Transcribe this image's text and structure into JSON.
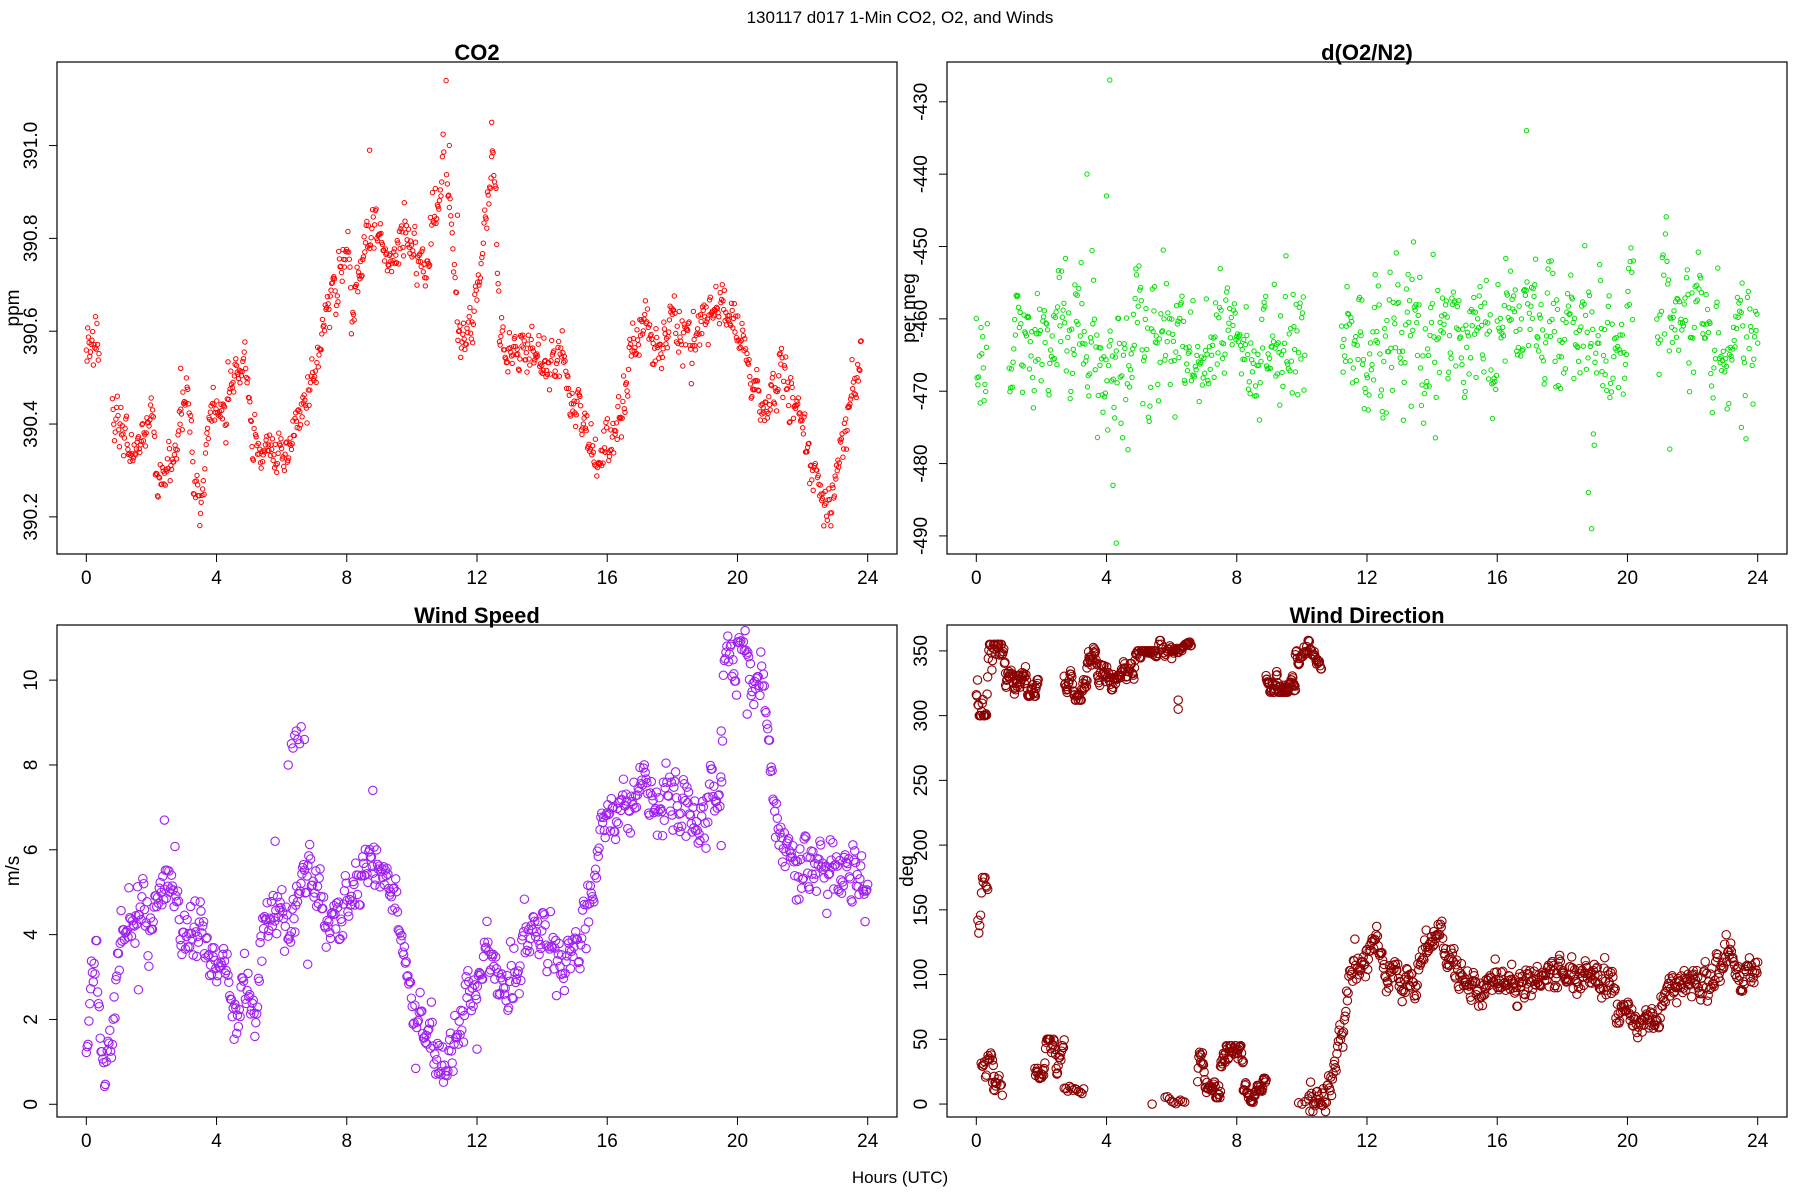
{
  "figure": {
    "title": "130117   d017   1-Min CO2, O2, and Winds",
    "xlabel": "Hours (UTC)"
  },
  "chart_data": [
    {
      "type": "scatter",
      "title": "CO2",
      "xlabel": "",
      "ylabel": "ppm",
      "color": "#ff0000",
      "xlim": [
        -0.9,
        24.9
      ],
      "ylim": [
        390.12,
        391.18
      ],
      "xticks": [
        "0",
        "4",
        "8",
        "12",
        "16",
        "20",
        "24"
      ],
      "yticks": [
        "390.2",
        "390.4",
        "390.6",
        "390.8",
        "391.0"
      ],
      "anchors": [
        [
          0,
          390.55
        ],
        [
          0.3,
          390.58
        ],
        [
          0.8,
          390.41
        ],
        [
          1.2,
          390.36
        ],
        [
          1.5,
          390.33
        ],
        [
          2.0,
          390.44
        ],
        [
          2.2,
          390.27
        ],
        [
          2.5,
          390.32
        ],
        [
          2.8,
          390.38
        ],
        [
          3.1,
          390.5
        ],
        [
          3.3,
          390.3
        ],
        [
          3.5,
          390.21
        ],
        [
          3.8,
          390.41
        ],
        [
          4.3,
          390.43
        ],
        [
          4.6,
          390.5
        ],
        [
          4.9,
          390.55
        ],
        [
          5.1,
          390.37
        ],
        [
          5.4,
          390.34
        ],
        [
          5.8,
          390.34
        ],
        [
          6.3,
          390.37
        ],
        [
          6.8,
          390.45
        ],
        [
          7.2,
          390.58
        ],
        [
          7.6,
          390.68
        ],
        [
          8.0,
          390.75
        ],
        [
          8.2,
          390.66
        ],
        [
          8.6,
          390.78
        ],
        [
          8.9,
          390.83
        ],
        [
          9.3,
          390.75
        ],
        [
          9.7,
          390.8
        ],
        [
          10.2,
          390.76
        ],
        [
          10.4,
          390.7
        ],
        [
          11.0,
          391.0
        ],
        [
          11.5,
          390.55
        ],
        [
          11.9,
          390.65
        ],
        [
          12.2,
          390.75
        ],
        [
          12.5,
          391.0
        ],
        [
          12.7,
          390.6
        ],
        [
          13.0,
          390.52
        ],
        [
          13.4,
          390.58
        ],
        [
          13.8,
          390.55
        ],
        [
          14.2,
          390.52
        ],
        [
          14.6,
          390.52
        ],
        [
          15.0,
          390.45
        ],
        [
          15.2,
          390.42
        ],
        [
          15.7,
          390.32
        ],
        [
          16.2,
          390.4
        ],
        [
          16.6,
          390.5
        ],
        [
          17.0,
          390.6
        ],
        [
          17.5,
          390.58
        ],
        [
          17.9,
          390.63
        ],
        [
          18.3,
          390.6
        ],
        [
          18.7,
          390.57
        ],
        [
          19.1,
          390.64
        ],
        [
          19.5,
          390.66
        ],
        [
          20.0,
          390.6
        ],
        [
          20.3,
          390.52
        ],
        [
          20.8,
          390.41
        ],
        [
          21.3,
          390.5
        ],
        [
          21.6,
          390.46
        ],
        [
          21.9,
          390.38
        ],
        [
          22.4,
          390.3
        ],
        [
          22.8,
          390.22
        ],
        [
          23.1,
          390.32
        ],
        [
          23.5,
          390.45
        ],
        [
          23.8,
          390.55
        ]
      ],
      "noise": 0.025,
      "samples": 1100,
      "gaps": [
        [
          0.4,
          0.8
        ],
        [
          11.0,
          11.05
        ]
      ],
      "spikes": [
        [
          11.05,
          391.14
        ],
        [
          11.15,
          391.0
        ],
        [
          11.4,
          390.85
        ],
        [
          12.45,
          391.05
        ],
        [
          8.7,
          390.99
        ],
        [
          2.9,
          390.52
        ]
      ]
    },
    {
      "type": "scatter",
      "title": "d(O2/N2)",
      "xlabel": "",
      "ylabel": "per meg",
      "color": "#00e000",
      "xlim": [
        -0.9,
        24.9
      ],
      "ylim": [
        -492.5,
        -424.5
      ],
      "xticks": [
        "0",
        "4",
        "8",
        "12",
        "16",
        "20",
        "24"
      ],
      "yticks": [
        "-490",
        "-480",
        "-470",
        "-460",
        "-450",
        "-440",
        "-430"
      ],
      "anchors": [
        [
          0,
          -466
        ],
        [
          0.3,
          -464
        ],
        [
          1.0,
          -463
        ],
        [
          2.0,
          -463
        ],
        [
          3.0,
          -462
        ],
        [
          4.0,
          -465
        ],
        [
          5.0,
          -464
        ],
        [
          6.0,
          -463
        ],
        [
          7.0,
          -462
        ],
        [
          8.0,
          -463
        ],
        [
          9.0,
          -465
        ],
        [
          10.0,
          -464
        ],
        [
          11.3,
          -461
        ],
        [
          12.5,
          -464
        ],
        [
          13.5,
          -465
        ],
        [
          14.5,
          -463
        ],
        [
          15.5,
          -461
        ],
        [
          16.5,
          -459
        ],
        [
          17.5,
          -460
        ],
        [
          18.5,
          -462
        ],
        [
          19.5,
          -463
        ],
        [
          20.2,
          -462
        ],
        [
          21.0,
          -461
        ],
        [
          22.0,
          -462
        ],
        [
          23.0,
          -463
        ],
        [
          24.0,
          -463
        ]
      ],
      "noise": 4.2,
      "samples": 1000,
      "gaps": [
        [
          0.35,
          1.0
        ],
        [
          10.1,
          11.2
        ],
        [
          20.2,
          20.9
        ]
      ],
      "spikes": [
        [
          4.1,
          -427
        ],
        [
          3.4,
          -440
        ],
        [
          4.0,
          -443
        ],
        [
          16.9,
          -434
        ],
        [
          4.3,
          -491
        ],
        [
          4.2,
          -483
        ],
        [
          18.9,
          -489
        ],
        [
          18.8,
          -484
        ],
        [
          21.3,
          -478
        ],
        [
          23.5,
          -475
        ]
      ]
    },
    {
      "type": "scatter",
      "title": "Wind Speed",
      "xlabel": "",
      "ylabel": "m/s",
      "color": "#a020f0",
      "xlim": [
        -0.9,
        24.9
      ],
      "ylim": [
        -0.3,
        11.3
      ],
      "xticks": [
        "0",
        "4",
        "8",
        "12",
        "16",
        "20",
        "24"
      ],
      "yticks": [
        "0",
        "2",
        "4",
        "6",
        "8",
        "10"
      ],
      "anchors": [
        [
          0,
          1.5
        ],
        [
          0.3,
          3.5
        ],
        [
          0.5,
          1.0
        ],
        [
          0.7,
          1.5
        ],
        [
          1.0,
          4.0
        ],
        [
          1.5,
          4.5
        ],
        [
          2.0,
          4.2
        ],
        [
          2.5,
          5.5
        ],
        [
          3.0,
          4.0
        ],
        [
          3.5,
          4.2
        ],
        [
          4.0,
          3.5
        ],
        [
          4.5,
          2.5
        ],
        [
          5.0,
          2.8
        ],
        [
          5.2,
          2.0
        ],
        [
          5.5,
          4.5
        ],
        [
          5.9,
          4.8
        ],
        [
          6.2,
          4.2
        ],
        [
          6.6,
          5.5
        ],
        [
          7.0,
          5.0
        ],
        [
          7.5,
          4.6
        ],
        [
          8.0,
          4.8
        ],
        [
          8.5,
          5.5
        ],
        [
          9.0,
          5.5
        ],
        [
          9.5,
          4.5
        ],
        [
          9.9,
          3.0
        ],
        [
          10.2,
          2.0
        ],
        [
          10.5,
          1.8
        ],
        [
          10.9,
          0.8
        ],
        [
          11.2,
          1.5
        ],
        [
          11.6,
          2.3
        ],
        [
          12.0,
          3.0
        ],
        [
          12.3,
          3.8
        ],
        [
          12.6,
          3.3
        ],
        [
          13.2,
          3.0
        ],
        [
          13.7,
          4.0
        ],
        [
          14.1,
          4.5
        ],
        [
          14.4,
          3.2
        ],
        [
          14.8,
          3.2
        ],
        [
          15.2,
          4.0
        ],
        [
          15.6,
          5.5
        ],
        [
          16.0,
          6.5
        ],
        [
          16.5,
          7.0
        ],
        [
          17.0,
          7.5
        ],
        [
          17.5,
          7.0
        ],
        [
          18.0,
          7.0
        ],
        [
          18.5,
          7.0
        ],
        [
          19.0,
          7.0
        ],
        [
          19.5,
          7.2
        ],
        [
          19.6,
          10.4
        ],
        [
          20.0,
          10.2
        ],
        [
          20.5,
          10.0
        ],
        [
          20.8,
          9.9
        ],
        [
          21.0,
          8.0
        ],
        [
          21.2,
          6.2
        ],
        [
          21.5,
          5.8
        ],
        [
          22.0,
          5.8
        ],
        [
          22.5,
          5.6
        ],
        [
          23.0,
          5.4
        ],
        [
          23.5,
          5.3
        ],
        [
          24.0,
          5.3
        ]
      ],
      "noise": 0.35,
      "samples": 900,
      "gaps": [],
      "spikes": [
        [
          6.3,
          8.5
        ],
        [
          6.4,
          8.7
        ],
        [
          6.5,
          8.6
        ],
        [
          6.6,
          8.9
        ],
        [
          6.7,
          8.6
        ],
        [
          6.35,
          8.4
        ],
        [
          6.45,
          8.8
        ],
        [
          6.55,
          8.5
        ],
        [
          6.2,
          8.0
        ],
        [
          8.8,
          7.4
        ],
        [
          1.6,
          2.7
        ],
        [
          2.4,
          6.7
        ],
        [
          5.8,
          6.2
        ],
        [
          6.8,
          3.3
        ],
        [
          12.0,
          1.3
        ],
        [
          20.3,
          9.2
        ],
        [
          19.5,
          8.8
        ],
        [
          19.5,
          6.1
        ]
      ]
    },
    {
      "type": "scatter",
      "title": "Wind Direction",
      "xlabel": "",
      "ylabel": "deg",
      "color": "#8b0000",
      "xlim": [
        -0.9,
        24.9
      ],
      "ylim": [
        -10,
        370
      ],
      "xticks": [
        "0",
        "4",
        "8",
        "12",
        "16",
        "20",
        "24"
      ],
      "yticks": [
        "0",
        "50",
        "100",
        "150",
        "200",
        "250",
        "300",
        "350"
      ],
      "anchors": [
        [
          10.2,
          1
        ],
        [
          10.6,
          3
        ],
        [
          10.9,
          10
        ],
        [
          11.1,
          40
        ],
        [
          11.4,
          80
        ],
        [
          11.7,
          105
        ],
        [
          12.0,
          115
        ],
        [
          12.3,
          130
        ],
        [
          12.5,
          100
        ],
        [
          13.0,
          95
        ],
        [
          13.5,
          92
        ],
        [
          13.8,
          120
        ],
        [
          14.2,
          135
        ],
        [
          14.5,
          110
        ],
        [
          15.0,
          95
        ],
        [
          15.5,
          92
        ],
        [
          16.0,
          93
        ],
        [
          16.5,
          96
        ],
        [
          17.0,
          97
        ],
        [
          17.5,
          98
        ],
        [
          18.0,
          100
        ],
        [
          18.5,
          98
        ],
        [
          19.0,
          98
        ],
        [
          19.5,
          96
        ],
        [
          19.7,
          72
        ],
        [
          20.2,
          68
        ],
        [
          20.8,
          66
        ],
        [
          21.1,
          80
        ],
        [
          21.5,
          90
        ],
        [
          22.0,
          92
        ],
        [
          22.5,
          95
        ],
        [
          22.8,
          108
        ],
        [
          23.2,
          115
        ],
        [
          23.5,
          100
        ],
        [
          24.0,
          105
        ]
      ],
      "noise": 6,
      "samples": 600,
      "gaps": [],
      "clusters": [
        [
          0,
          0.9,
          300,
          355,
          50
        ],
        [
          0.9,
          1.9,
          315,
          345,
          60
        ],
        [
          2.7,
          3.4,
          312,
          350,
          40
        ],
        [
          3.4,
          4.2,
          320,
          355,
          50
        ],
        [
          4.2,
          5.5,
          320,
          350,
          70
        ],
        [
          5.5,
          6.0,
          335,
          358,
          20
        ],
        [
          6.0,
          6.6,
          345,
          358,
          30
        ],
        [
          8.9,
          9.8,
          318,
          345,
          70
        ],
        [
          9.8,
          10.6,
          335,
          358,
          40
        ],
        [
          0.05,
          0.35,
          110,
          175,
          12
        ],
        [
          0.15,
          0.6,
          10,
          60,
          18
        ],
        [
          0.5,
          0.8,
          0,
          40,
          10
        ],
        [
          1.8,
          2.7,
          0,
          50,
          45
        ],
        [
          2.7,
          3.3,
          0,
          20,
          12
        ],
        [
          5.8,
          6.4,
          0,
          15,
          10
        ],
        [
          6.8,
          7.5,
          5,
          40,
          40
        ],
        [
          7.5,
          8.2,
          10,
          45,
          40
        ],
        [
          8.2,
          8.9,
          0,
          20,
          40
        ]
      ],
      "spikes": [
        [
          6.2,
          305
        ],
        [
          6.2,
          312
        ],
        [
          5.4,
          0
        ],
        [
          9.9,
          1
        ],
        [
          10.0,
          0
        ],
        [
          10.1,
          2
        ]
      ]
    }
  ]
}
